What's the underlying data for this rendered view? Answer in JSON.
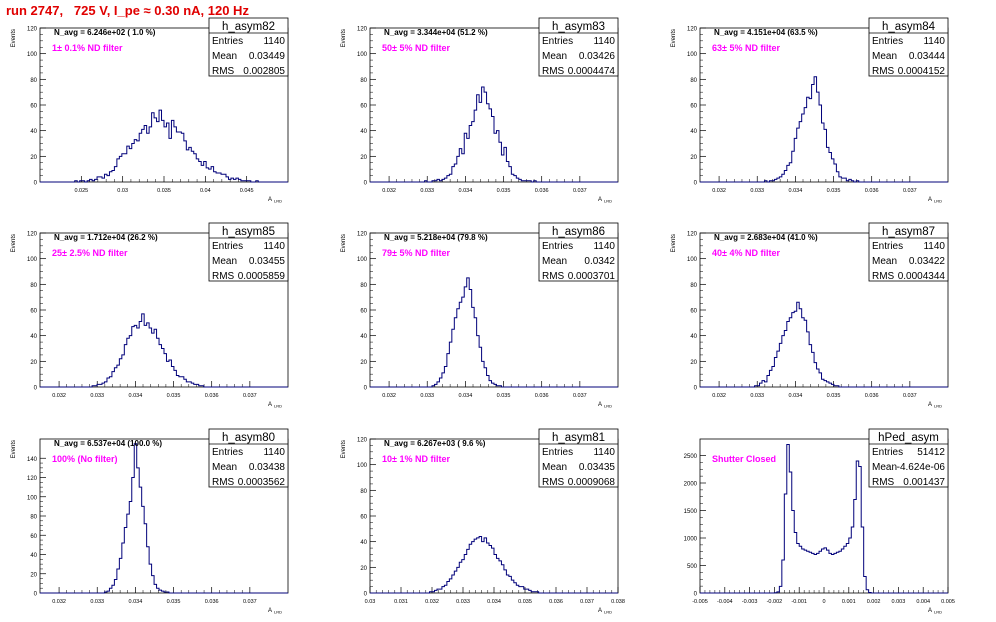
{
  "run_title": "run 2747,   725 V, I_pe ≈ 0.30 nA, 120 Hz",
  "colors": {
    "hist": "#00007a",
    "annotation": "#ff00ff",
    "title": "#e00000",
    "axis": "#000000"
  },
  "chart_data": [
    {
      "type": "histogram",
      "title": "h_asym82",
      "ylabel": "Events",
      "navg": "N_avg = 6.246e+02 ( 1.0 %)",
      "annotation": "1± 0.1% ND filter",
      "stats": [
        [
          "Entries",
          "1140"
        ],
        [
          "Mean",
          "0.03449"
        ],
        [
          "RMS",
          "0.002805"
        ]
      ],
      "xlim": [
        0.02,
        0.05
      ],
      "ylim": [
        0,
        120
      ],
      "yticks": [
        0,
        20,
        40,
        60,
        80,
        100,
        120
      ],
      "xticks": [
        0.025,
        0.03,
        0.035,
        0.04,
        0.045
      ],
      "xtick_labels": [
        "0.025",
        "0.03",
        "0.035",
        "0.04",
        "0.045"
      ],
      "peak": 56,
      "values": [
        0,
        0,
        0,
        0,
        0,
        0,
        0,
        0,
        0,
        0,
        0,
        0,
        0,
        0,
        1,
        0,
        1,
        1,
        0,
        1,
        2,
        1,
        2,
        4,
        4,
        3,
        6,
        5,
        8,
        9,
        12,
        18,
        20,
        22,
        22,
        28,
        26,
        30,
        33,
        32,
        38,
        41,
        44,
        38,
        43,
        54,
        50,
        47,
        56,
        48,
        43,
        46,
        34,
        48,
        43,
        39,
        39,
        38,
        32,
        25,
        27,
        24,
        22,
        18,
        16,
        13,
        16,
        11,
        10,
        12,
        8,
        7,
        7,
        6,
        6,
        4,
        2,
        3,
        2,
        3,
        2,
        1,
        1,
        1,
        1,
        0,
        0,
        1,
        0,
        0,
        0,
        0,
        0,
        0,
        0,
        0,
        0,
        0,
        0,
        0
      ]
    },
    {
      "type": "histogram",
      "title": "h_asym83",
      "ylabel": "Events",
      "navg": "N_avg = 3.344e+04 (51.2 %)",
      "annotation": "50± 5% ND filter",
      "stats": [
        [
          "Entries",
          "1140"
        ],
        [
          "Mean",
          "0.03426"
        ],
        [
          "RMS",
          "0.0004474"
        ]
      ],
      "xlim": [
        0.0315,
        0.038
      ],
      "ylim": [
        0,
        120
      ],
      "yticks": [
        0,
        20,
        40,
        60,
        80,
        100,
        120
      ],
      "xticks": [
        0.032,
        0.033,
        0.034,
        0.035,
        0.036,
        0.037
      ],
      "xtick_labels": [
        "0.032",
        "0.033",
        "0.034",
        "0.035",
        "0.036",
        "0.037"
      ],
      "peak": 74,
      "values": [
        0,
        0,
        0,
        0,
        0,
        0,
        0,
        0,
        0,
        0,
        0,
        0,
        0,
        0,
        0,
        0,
        0,
        0,
        0,
        0,
        0,
        0,
        1,
        0,
        0,
        1,
        1,
        2,
        1,
        2,
        3,
        5,
        6,
        12,
        14,
        20,
        26,
        22,
        38,
        34,
        44,
        47,
        56,
        68,
        62,
        74,
        70,
        61,
        57,
        51,
        38,
        40,
        31,
        21,
        27,
        16,
        12,
        6,
        5,
        3,
        2,
        1,
        1,
        1,
        1,
        0,
        1,
        0,
        0,
        0,
        0,
        0,
        0,
        0,
        0,
        0,
        0,
        0,
        0,
        0,
        0,
        0,
        0,
        0,
        0,
        0,
        0,
        0,
        0,
        0,
        0,
        0,
        0,
        0,
        0,
        0,
        0,
        0,
        0,
        0
      ]
    },
    {
      "type": "histogram",
      "title": "h_asym84",
      "ylabel": "Events",
      "navg": "N_avg = 4.151e+04 (63.5 %)",
      "annotation": "63± 5% ND filter",
      "stats": [
        [
          "Entries",
          "1140"
        ],
        [
          "Mean",
          "0.03444"
        ],
        [
          "RMS",
          "0.0004152"
        ]
      ],
      "xlim": [
        0.0315,
        0.038
      ],
      "ylim": [
        0,
        120
      ],
      "yticks": [
        0,
        20,
        40,
        60,
        80,
        100,
        120
      ],
      "xticks": [
        0.032,
        0.033,
        0.034,
        0.035,
        0.036,
        0.037
      ],
      "xtick_labels": [
        "0.032",
        "0.033",
        "0.034",
        "0.035",
        "0.036",
        "0.037"
      ],
      "peak": 82,
      "values": [
        0,
        0,
        0,
        0,
        0,
        0,
        0,
        0,
        0,
        0,
        0,
        0,
        0,
        0,
        0,
        0,
        0,
        0,
        0,
        0,
        0,
        0,
        0,
        0,
        0,
        0,
        1,
        0,
        1,
        1,
        2,
        3,
        4,
        6,
        9,
        13,
        15,
        24,
        34,
        42,
        47,
        53,
        58,
        66,
        65,
        76,
        82,
        70,
        60,
        46,
        41,
        27,
        23,
        18,
        14,
        8,
        4,
        3,
        3,
        1,
        2,
        1,
        0,
        1,
        0,
        0,
        0,
        0,
        0,
        0,
        0,
        0,
        0,
        0,
        0,
        0,
        0,
        0,
        0,
        0,
        0,
        0,
        0,
        0,
        0,
        0,
        0,
        0,
        0,
        0,
        0,
        0,
        0,
        0,
        0,
        0,
        0,
        0,
        0,
        0
      ]
    },
    {
      "type": "histogram",
      "title": "h_asym85",
      "ylabel": "Events",
      "navg": "N_avg = 1.712e+04 (26.2 %)",
      "annotation": "25± 2.5% ND filter",
      "stats": [
        [
          "Entries",
          "1140"
        ],
        [
          "Mean",
          "0.03455"
        ],
        [
          "RMS",
          "0.0005859"
        ]
      ],
      "xlim": [
        0.0315,
        0.038
      ],
      "ylim": [
        0,
        120
      ],
      "yticks": [
        0,
        20,
        40,
        60,
        80,
        100,
        120
      ],
      "xticks": [
        0.032,
        0.033,
        0.034,
        0.035,
        0.036,
        0.037
      ],
      "xtick_labels": [
        "0.032",
        "0.033",
        "0.034",
        "0.035",
        "0.036",
        "0.037"
      ],
      "peak": 57,
      "values": [
        0,
        0,
        0,
        0,
        0,
        0,
        0,
        0,
        0,
        0,
        0,
        0,
        0,
        0,
        0,
        0,
        0,
        0,
        0,
        0,
        0,
        1,
        1,
        2,
        2,
        3,
        4,
        7,
        8,
        12,
        15,
        17,
        22,
        25,
        33,
        38,
        40,
        47,
        48,
        46,
        51,
        57,
        48,
        50,
        46,
        42,
        45,
        38,
        33,
        30,
        26,
        20,
        21,
        16,
        13,
        9,
        8,
        8,
        6,
        4,
        4,
        3,
        2,
        2,
        1,
        1,
        0,
        0,
        0,
        0,
        0,
        0,
        0,
        0,
        0,
        0,
        0,
        0,
        0,
        0,
        0,
        0,
        0,
        0,
        0,
        0,
        0,
        0,
        0,
        0,
        0,
        0,
        0,
        0,
        0,
        0,
        0,
        0,
        0,
        0
      ]
    },
    {
      "type": "histogram",
      "title": "h_asym86",
      "ylabel": "Events",
      "navg": "N_avg = 5.218e+04 (79.8 %)",
      "annotation": "79± 5% ND filter",
      "stats": [
        [
          "Entries",
          "1140"
        ],
        [
          "Mean",
          "0.0342"
        ],
        [
          "RMS",
          "0.0003701"
        ]
      ],
      "xlim": [
        0.0315,
        0.038
      ],
      "ylim": [
        0,
        120
      ],
      "yticks": [
        0,
        20,
        40,
        60,
        80,
        100,
        120
      ],
      "xticks": [
        0.032,
        0.033,
        0.034,
        0.035,
        0.036,
        0.037
      ],
      "xtick_labels": [
        "0.032",
        "0.033",
        "0.034",
        "0.035",
        "0.036",
        "0.037"
      ],
      "peak": 85,
      "values": [
        0,
        0,
        0,
        0,
        0,
        0,
        0,
        0,
        0,
        0,
        0,
        0,
        0,
        0,
        0,
        0,
        0,
        0,
        0,
        0,
        0,
        0,
        0,
        0,
        0,
        1,
        2,
        4,
        7,
        11,
        16,
        26,
        35,
        45,
        54,
        61,
        66,
        70,
        78,
        85,
        76,
        62,
        54,
        40,
        31,
        20,
        15,
        9,
        5,
        3,
        2,
        1,
        1,
        0,
        0,
        0,
        0,
        0,
        0,
        0,
        0,
        0,
        0,
        0,
        0,
        0,
        0,
        0,
        0,
        0,
        0,
        0,
        0,
        0,
        0,
        0,
        0,
        0,
        0,
        0,
        0,
        0,
        0,
        0,
        0,
        0,
        0,
        0,
        0,
        0,
        0,
        0,
        0,
        0,
        0,
        0,
        0,
        0,
        0,
        0
      ]
    },
    {
      "type": "histogram",
      "title": "h_asym87",
      "ylabel": "Events",
      "navg": "N_avg = 2.683e+04 (41.0 %)",
      "annotation": "40± 4% ND filter",
      "stats": [
        [
          "Entries",
          "1140"
        ],
        [
          "Mean",
          "0.03422"
        ],
        [
          "RMS",
          "0.0004344"
        ]
      ],
      "xlim": [
        0.0315,
        0.038
      ],
      "ylim": [
        0,
        120
      ],
      "yticks": [
        0,
        20,
        40,
        60,
        80,
        100,
        120
      ],
      "xticks": [
        0.032,
        0.033,
        0.034,
        0.035,
        0.036,
        0.037
      ],
      "xtick_labels": [
        "0.032",
        "0.033",
        "0.034",
        "0.035",
        "0.036",
        "0.037"
      ],
      "peak": 66,
      "values": [
        0,
        0,
        0,
        0,
        0,
        0,
        0,
        0,
        0,
        0,
        0,
        0,
        0,
        0,
        0,
        0,
        0,
        0,
        0,
        0,
        0,
        0,
        1,
        1,
        3,
        5,
        4,
        9,
        13,
        16,
        23,
        28,
        34,
        40,
        44,
        51,
        54,
        58,
        59,
        66,
        61,
        54,
        52,
        43,
        33,
        27,
        19,
        14,
        11,
        6,
        5,
        4,
        3,
        2,
        1,
        1,
        0,
        0,
        0,
        0,
        0,
        0,
        0,
        0,
        0,
        0,
        0,
        0,
        0,
        0,
        0,
        0,
        0,
        0,
        0,
        0,
        0,
        0,
        0,
        0,
        0,
        0,
        0,
        0,
        0,
        0,
        0,
        0,
        0,
        0,
        0,
        0,
        0,
        0,
        0,
        0,
        0,
        0,
        0,
        0
      ]
    },
    {
      "type": "histogram",
      "title": "h_asym80",
      "ylabel": "Events",
      "navg": "N_avg = 6.537e+04 (100.0 %)",
      "annotation": "100% (No filter)",
      "stats": [
        [
          "Entries",
          "1140"
        ],
        [
          "Mean",
          "0.03438"
        ],
        [
          "RMS",
          "0.0003562"
        ]
      ],
      "xlim": [
        0.0315,
        0.038
      ],
      "ylim": [
        0,
        160
      ],
      "yticks": [
        0,
        20,
        40,
        60,
        80,
        100,
        120,
        140
      ],
      "xticks": [
        0.032,
        0.033,
        0.034,
        0.035,
        0.036,
        0.037
      ],
      "xtick_labels": [
        "0.032",
        "0.033",
        "0.034",
        "0.035",
        "0.036",
        "0.037"
      ],
      "peak": 155,
      "values": [
        0,
        0,
        0,
        0,
        0,
        0,
        0,
        0,
        0,
        0,
        0,
        0,
        0,
        0,
        0,
        0,
        0,
        0,
        0,
        0,
        0,
        0,
        0,
        0,
        0,
        0,
        1,
        2,
        5,
        8,
        14,
        25,
        36,
        52,
        68,
        82,
        95,
        120,
        155,
        130,
        110,
        90,
        72,
        48,
        30,
        18,
        9,
        5,
        3,
        2,
        1,
        1,
        0,
        0,
        0,
        0,
        0,
        0,
        0,
        0,
        0,
        0,
        0,
        0,
        0,
        0,
        0,
        0,
        0,
        0,
        0,
        0,
        0,
        0,
        0,
        0,
        0,
        0,
        0,
        0,
        0,
        0,
        0,
        0,
        0,
        0,
        0,
        0,
        0,
        0,
        0,
        0,
        0,
        0,
        0,
        0,
        0,
        0,
        0,
        0
      ]
    },
    {
      "type": "histogram",
      "title": "h_asym81",
      "ylabel": "Events",
      "navg": "N_avg = 6.267e+03 ( 9.6 %)",
      "annotation": "10± 1% ND filter",
      "stats": [
        [
          "Entries",
          "1140"
        ],
        [
          "Mean",
          "0.03435"
        ],
        [
          "RMS",
          "0.0009068"
        ]
      ],
      "xlim": [
        0.03,
        0.038
      ],
      "ylim": [
        0,
        120
      ],
      "yticks": [
        0,
        20,
        40,
        60,
        80,
        100,
        120
      ],
      "xticks": [
        0.03,
        0.031,
        0.032,
        0.033,
        0.034,
        0.035,
        0.036,
        0.037,
        0.038
      ],
      "xtick_labels": [
        "0.03",
        "0.031",
        "0.032",
        "0.033",
        "0.034",
        "0.035",
        "0.036",
        "0.037",
        "0.038"
      ],
      "peak": 44,
      "values": [
        0,
        0,
        0,
        0,
        0,
        0,
        0,
        0,
        0,
        0,
        0,
        0,
        0,
        0,
        0,
        0,
        0,
        0,
        0,
        0,
        0,
        0,
        0,
        0,
        1,
        1,
        2,
        3,
        3,
        5,
        6,
        9,
        11,
        14,
        17,
        20,
        24,
        26,
        30,
        34,
        38,
        40,
        42,
        43,
        44,
        40,
        43,
        39,
        37,
        35,
        30,
        27,
        25,
        22,
        18,
        14,
        13,
        10,
        8,
        6,
        5,
        5,
        3,
        3,
        2,
        1,
        1,
        1,
        0,
        0,
        0,
        0,
        0,
        0,
        0,
        0,
        0,
        0,
        0,
        0,
        0,
        0,
        0,
        0,
        0,
        0,
        0,
        0,
        0,
        0,
        0,
        0,
        0,
        0,
        0,
        0,
        0,
        0,
        0,
        0
      ]
    },
    {
      "type": "histogram",
      "title": "hPed_asym",
      "ylabel": "",
      "navg": "",
      "annotation": "Shutter Closed",
      "stats": [
        [
          "Entries",
          "51412"
        ],
        [
          "Mean",
          "-4.624e-06"
        ],
        [
          "RMS",
          "0.001437"
        ]
      ],
      "xlim": [
        -0.005,
        0.005
      ],
      "ylim": [
        0,
        2800
      ],
      "yticks": [
        0,
        500,
        1000,
        1500,
        2000,
        2500
      ],
      "xticks": [
        -0.005,
        -0.004,
        -0.003,
        -0.002,
        -0.001,
        0,
        0.001,
        0.002,
        0.003,
        0.004,
        0.005
      ],
      "xtick_labels": [
        "-0.005",
        "-0.004",
        "-0.003",
        "-0.002",
        "-0.001",
        "0",
        "0.001",
        "0.002",
        "0.003",
        "0.004",
        "0.005"
      ],
      "peak": 2700,
      "values": [
        0,
        0,
        0,
        0,
        0,
        0,
        0,
        0,
        0,
        0,
        0,
        0,
        0,
        0,
        0,
        0,
        0,
        0,
        0,
        0,
        0,
        0,
        0,
        0,
        0,
        0,
        0,
        0,
        0,
        0,
        5,
        20,
        120,
        600,
        1800,
        2700,
        2200,
        1500,
        1100,
        900,
        850,
        800,
        780,
        760,
        740,
        720,
        700,
        720,
        760,
        800,
        820,
        780,
        720,
        700,
        720,
        740,
        760,
        800,
        850,
        900,
        1000,
        1200,
        1700,
        2400,
        2300,
        1200,
        300,
        60,
        10,
        0,
        0,
        0,
        0,
        0,
        0,
        0,
        0,
        0,
        0,
        0,
        0,
        0,
        0,
        0,
        0,
        0,
        0,
        0,
        0,
        0,
        0,
        0,
        0,
        0,
        0,
        0,
        0,
        0,
        0,
        0
      ]
    }
  ]
}
